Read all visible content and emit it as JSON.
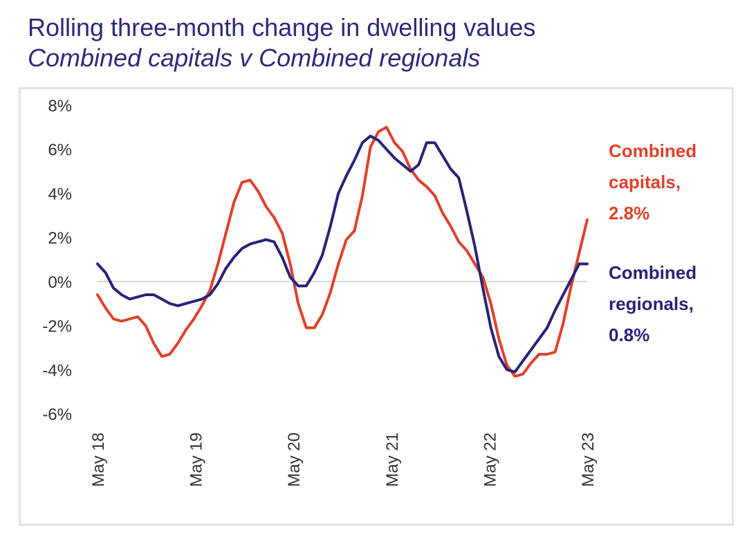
{
  "chart_title": "Rolling three-month change in dwelling values",
  "chart_subtitle": "Combined capitals v Combined regionals",
  "colors": {
    "title": "#2b2a7a",
    "capitals": "#e0402a",
    "regionals": "#27237a",
    "zero_line": "#d6d6d6"
  },
  "chart_data": {
    "type": "line",
    "title": "Rolling three-month change in dwelling values",
    "subtitle": "Combined capitals v Combined regionals",
    "xlabel": "",
    "ylabel": "",
    "ylim": [
      -6,
      8
    ],
    "y_ticks": [
      "8%",
      "6%",
      "4%",
      "2%",
      "0%",
      "-2%",
      "-4%",
      "-6%"
    ],
    "x_ticks": [
      "May 18",
      "May 19",
      "May 20",
      "May 21",
      "May 22",
      "May 23"
    ],
    "x_start": "May 18",
    "x_end": "May 23",
    "grid": false,
    "series": [
      {
        "name": "Combined capitals",
        "end_label": [
          "Combined",
          "capitals,",
          "2.8%"
        ],
        "color": "#e0402a",
        "values": [
          -0.6,
          -1.2,
          -1.7,
          -1.8,
          -1.7,
          -1.6,
          -2.0,
          -2.8,
          -3.4,
          -3.3,
          -2.8,
          -2.2,
          -1.7,
          -1.1,
          -0.4,
          0.8,
          2.2,
          3.6,
          4.5,
          4.6,
          4.1,
          3.4,
          2.9,
          2.2,
          0.8,
          -1.0,
          -2.1,
          -2.1,
          -1.5,
          -0.5,
          0.8,
          1.9,
          2.3,
          3.9,
          6.1,
          6.8,
          7.0,
          6.3,
          5.9,
          5.1,
          4.6,
          4.3,
          3.9,
          3.1,
          2.5,
          1.8,
          1.4,
          0.8,
          0.2,
          -1.0,
          -2.6,
          -3.8,
          -4.3,
          -4.2,
          -3.7,
          -3.3,
          -3.3,
          -3.2,
          -1.9,
          -0.2,
          1.3,
          2.8
        ]
      },
      {
        "name": "Combined regionals",
        "end_label": [
          "Combined",
          "regionals,",
          "0.8%"
        ],
        "color": "#27237a",
        "values": [
          0.8,
          0.4,
          -0.3,
          -0.6,
          -0.8,
          -0.7,
          -0.6,
          -0.6,
          -0.8,
          -1.0,
          -1.1,
          -1.0,
          -0.9,
          -0.8,
          -0.6,
          -0.1,
          0.6,
          1.1,
          1.5,
          1.7,
          1.8,
          1.9,
          1.8,
          1.1,
          0.2,
          -0.2,
          -0.2,
          0.4,
          1.2,
          2.5,
          4.0,
          4.8,
          5.5,
          6.3,
          6.6,
          6.4,
          6.0,
          5.6,
          5.3,
          5.0,
          5.3,
          6.3,
          6.3,
          5.7,
          5.1,
          4.7,
          3.2,
          1.6,
          -0.3,
          -2.1,
          -3.4,
          -4.0,
          -4.1,
          -3.6,
          -3.1,
          -2.6,
          -2.1,
          -1.3,
          -0.6,
          0.1,
          0.8,
          0.8
        ]
      }
    ]
  }
}
